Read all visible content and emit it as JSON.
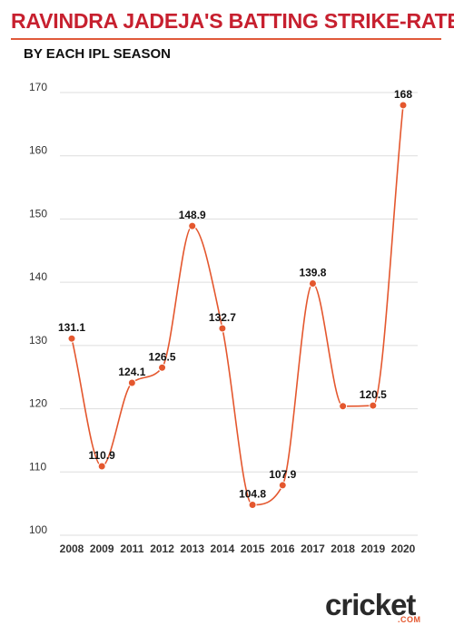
{
  "header": {
    "title": "RAVINDRA JADEJA'S BATTING STRIKE-RATE",
    "subtitle": "BY EACH IPL SEASON"
  },
  "brand": {
    "logo_text": "cricket",
    "logo_sub": ".COM"
  },
  "colors": {
    "title": "#c7202f",
    "line": "#e4572e",
    "marker": "#e4572e",
    "grid": "#dddddd"
  },
  "chart_data": {
    "type": "line",
    "title": "RAVINDRA JADEJA'S BATTING STRIKE-RATE",
    "subtitle": "BY EACH IPL SEASON",
    "xlabel": "",
    "ylabel": "",
    "categories": [
      "2008",
      "2009",
      "2011",
      "2012",
      "2013",
      "2014",
      "2015",
      "2016",
      "2017",
      "2018",
      "2019",
      "2020"
    ],
    "series": [
      {
        "values": [
          131.1,
          110.9,
          124.1,
          126.5,
          148.9,
          132.7,
          104.8,
          107.9,
          139.8,
          120.4,
          120.5,
          168
        ]
      }
    ],
    "point_labels": [
      "131.1",
      "110.9",
      "124.1",
      "126.5",
      "148.9",
      "132.7",
      "104.8",
      "107.9",
      "139.8",
      "",
      "120.5",
      "168"
    ],
    "ylim": [
      100,
      170
    ],
    "yticks": [
      100,
      110,
      120,
      130,
      140,
      150,
      160,
      170
    ],
    "grid": true,
    "legend": "none",
    "smooth": true
  }
}
